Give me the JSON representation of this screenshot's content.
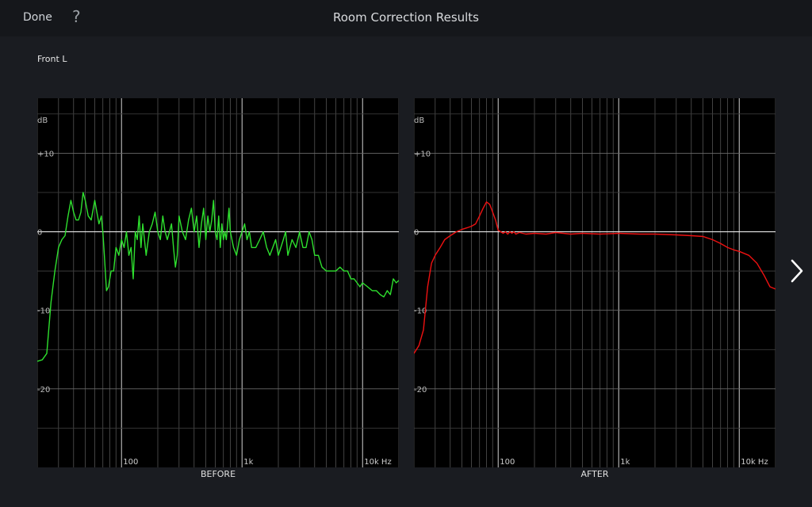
{
  "header": {
    "done_label": "Done",
    "help_label": "?",
    "title": "Room Correction Results"
  },
  "channel_label": "Front L",
  "icons": {
    "help": "question-mark-icon",
    "next": "chevron-right-icon"
  },
  "colors": {
    "background": "#1a1c21",
    "header": "#15171b",
    "before_trace": "#2ee02e",
    "after_trace": "#ee1111"
  },
  "chart_data": [
    {
      "type": "line",
      "title": "BEFORE",
      "ylabel": "dB",
      "xscale": "log",
      "xlim": [
        20,
        20000
      ],
      "ylim": [
        -30,
        17
      ],
      "x_tick_labels": [
        {
          "x": 100,
          "label": "100"
        },
        {
          "x": 1000,
          "label": "1k"
        },
        {
          "x": 10000,
          "label": "10k Hz"
        }
      ],
      "y_tick_labels": [
        {
          "y": 10,
          "label": "+10"
        },
        {
          "y": 0,
          "label": "0"
        },
        {
          "y": -10,
          "label": "-10"
        },
        {
          "y": -20,
          "label": "-20"
        }
      ],
      "grid": true,
      "series": [
        {
          "color": "#2ee02e",
          "x": [
            20,
            22,
            24,
            26,
            28,
            30,
            32,
            34,
            36,
            38,
            40,
            42,
            44,
            46,
            48,
            50,
            53,
            56,
            60,
            65,
            68,
            70,
            72,
            75,
            78,
            82,
            86,
            90,
            95,
            100,
            105,
            110,
            115,
            120,
            125,
            130,
            135,
            140,
            145,
            150,
            160,
            170,
            180,
            190,
            200,
            210,
            220,
            230,
            240,
            250,
            260,
            270,
            280,
            290,
            300,
            320,
            340,
            360,
            380,
            400,
            420,
            440,
            460,
            480,
            500,
            520,
            540,
            560,
            580,
            600,
            620,
            640,
            660,
            680,
            700,
            720,
            740,
            760,
            780,
            800,
            850,
            900,
            950,
            1000,
            1050,
            1100,
            1150,
            1200,
            1300,
            1400,
            1500,
            1600,
            1700,
            1800,
            1900,
            2000,
            2100,
            2200,
            2300,
            2400,
            2600,
            2800,
            3000,
            3200,
            3400,
            3600,
            3800,
            4000,
            4300,
            4600,
            5000,
            5500,
            6000,
            6500,
            7000,
            7500,
            8000,
            8500,
            9000,
            9500,
            10000,
            11000,
            12000,
            13000,
            14000,
            15000,
            16000,
            17000,
            18000,
            19000,
            20000
          ],
          "values": [
            -16.5,
            -16.3,
            -15.5,
            -9,
            -5,
            -2,
            -1,
            -0.5,
            2,
            4,
            2.5,
            1.5,
            1.5,
            2.5,
            5,
            4,
            2,
            1.5,
            4,
            1,
            2,
            0,
            -3,
            -7.5,
            -7,
            -5,
            -5,
            -2,
            -3,
            -1,
            -2,
            0,
            -3,
            -2,
            -6,
            0,
            -1,
            2,
            -2,
            1,
            -3,
            0,
            1,
            2.5,
            0,
            -1,
            2,
            0,
            -1,
            0,
            1,
            -2,
            -4.5,
            -3,
            2,
            0,
            -1,
            1.5,
            3,
            0,
            2,
            -2,
            1,
            3,
            -1,
            2,
            0,
            1.5,
            4,
            0,
            -1,
            2,
            -2,
            1,
            -1,
            0,
            -1,
            1,
            3,
            0,
            -2,
            -3,
            -1,
            0,
            1,
            -1,
            0,
            -2,
            -2,
            -1,
            0,
            -2,
            -3,
            -2,
            -1,
            -3,
            -2,
            -1,
            0,
            -3,
            -1,
            -2,
            0,
            -2,
            -2,
            0,
            -1,
            -3,
            -3,
            -4.5,
            -5,
            -5,
            -5,
            -4.5,
            -5,
            -5,
            -6,
            -6,
            -6.5,
            -7,
            -6.5,
            -7,
            -7.5,
            -7.5,
            -8,
            -8.3,
            -7.5,
            -8,
            -6,
            -6.5,
            -6.2
          ]
        }
      ]
    },
    {
      "type": "line",
      "title": "AFTER",
      "ylabel": "dB",
      "xscale": "log",
      "xlim": [
        20,
        20000
      ],
      "ylim": [
        -30,
        17
      ],
      "x_tick_labels": [
        {
          "x": 100,
          "label": "100"
        },
        {
          "x": 1000,
          "label": "1k"
        },
        {
          "x": 10000,
          "label": "10k Hz"
        }
      ],
      "y_tick_labels": [
        {
          "y": 10,
          "label": "+10"
        },
        {
          "y": 0,
          "label": "0"
        },
        {
          "y": -10,
          "label": "-10"
        },
        {
          "y": -20,
          "label": "-20"
        }
      ],
      "grid": true,
      "series": [
        {
          "color": "#ee1111",
          "x": [
            20,
            22,
            24,
            26,
            28,
            30,
            33,
            36,
            40,
            45,
            50,
            55,
            60,
            65,
            70,
            75,
            80,
            85,
            90,
            95,
            100,
            105,
            110,
            115,
            120,
            125,
            130,
            135,
            140,
            150,
            170,
            200,
            250,
            300,
            400,
            500,
            700,
            1000,
            1500,
            2000,
            3000,
            4000,
            5000,
            6000,
            7000,
            8000,
            9000,
            10000,
            12000,
            14000,
            16000,
            18000,
            20000
          ],
          "values": [
            -15.5,
            -14.5,
            -12.5,
            -7,
            -4,
            -3,
            -2,
            -1,
            -0.5,
            0,
            0.3,
            0.5,
            0.7,
            1,
            2,
            3,
            3.8,
            3.5,
            2.5,
            1.5,
            0.2,
            0,
            -0.2,
            0,
            -0.3,
            0,
            -0.2,
            0,
            -0.3,
            -0.1,
            -0.3,
            -0.2,
            -0.3,
            -0.1,
            -0.3,
            -0.2,
            -0.3,
            -0.2,
            -0.3,
            -0.3,
            -0.4,
            -0.5,
            -0.6,
            -1,
            -1.5,
            -2,
            -2.3,
            -2.5,
            -3,
            -4,
            -5.5,
            -7,
            -7.3
          ]
        }
      ]
    }
  ]
}
